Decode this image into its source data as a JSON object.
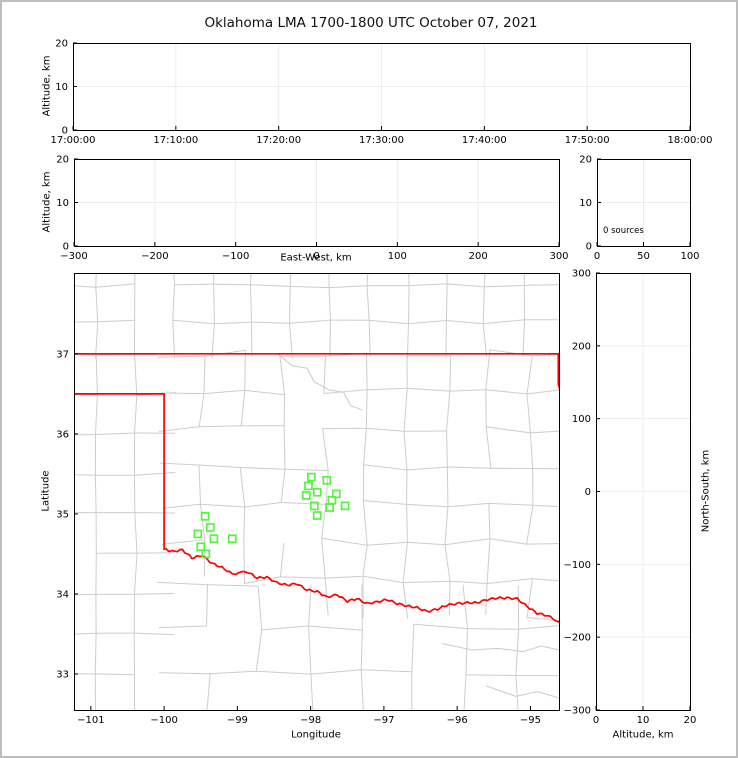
{
  "title": "Oklahoma LMA 1700-1800 UTC October 07, 2021",
  "colors": {
    "state_border": "#ff0000",
    "county_line": "#cdcdcd",
    "station_marker": "#55f43e",
    "gridline": "#ececec",
    "axis": "#000000"
  },
  "panels": {
    "time_height": {
      "ylabel": "Altitude, km",
      "yticks": [
        0,
        10,
        20
      ],
      "yrange": [
        0,
        20
      ],
      "xtick_labels": [
        "17:00:00",
        "17:10:00",
        "17:20:00",
        "17:30:00",
        "17:40:00",
        "17:50:00",
        "18:00:00"
      ]
    },
    "ew_height": {
      "ylabel": "Altitude, km",
      "xlabel": "East-West, km",
      "xticks": [
        -300,
        -200,
        -100,
        0,
        100,
        200,
        300
      ],
      "xrange": [
        -300,
        300
      ],
      "yticks": [
        0,
        10,
        20
      ],
      "yrange": [
        0,
        20
      ]
    },
    "histogram": {
      "annotation": "0 sources",
      "xticks": [
        0,
        50,
        100
      ],
      "xrange": [
        0,
        100
      ],
      "yticks": [
        0,
        10,
        20
      ],
      "yrange": [
        0,
        20
      ]
    },
    "map": {
      "xlabel": "Longitude",
      "ylabel": "Latitude",
      "xticks": [
        -101,
        -100,
        -99,
        -98,
        -97,
        -96,
        -95
      ],
      "yticks": [
        33,
        34,
        35,
        36,
        37
      ],
      "lon_range": [
        -101.23,
        -94.61
      ],
      "lat_range": [
        32.55,
        38.01
      ]
    },
    "ns_height": {
      "xlabel": "Altitude, km",
      "ylabel": "North-South, km",
      "xticks": [
        0,
        10,
        20
      ],
      "xrange": [
        0,
        20
      ],
      "yticks": [
        -300,
        -200,
        -100,
        0,
        100,
        200,
        300
      ],
      "yrange": [
        -300,
        300
      ]
    }
  },
  "chart_data": {
    "type": "scatter",
    "title": "Oklahoma LMA 1700-1800 UTC October 07, 2021",
    "source_points": [],
    "source_count_label": "0 sources",
    "stations": {
      "marker": "open-square",
      "color": "#55f43e",
      "points": [
        [
          -99.44,
          34.97
        ],
        [
          -99.37,
          34.83
        ],
        [
          -99.54,
          34.75
        ],
        [
          -99.32,
          34.69
        ],
        [
          -99.07,
          34.69
        ],
        [
          -99.5,
          34.59
        ],
        [
          -99.43,
          34.5
        ],
        [
          -97.99,
          35.46
        ],
        [
          -97.78,
          35.42
        ],
        [
          -98.03,
          35.35
        ],
        [
          -97.91,
          35.27
        ],
        [
          -98.06,
          35.23
        ],
        [
          -97.65,
          35.25
        ],
        [
          -97.71,
          35.17
        ],
        [
          -97.95,
          35.1
        ],
        [
          -97.74,
          35.08
        ],
        [
          -97.53,
          35.1
        ],
        [
          -97.91,
          34.98
        ]
      ]
    },
    "state_border": {
      "color": "#ff0000",
      "north_line": [
        [
          -101.23,
          37.0
        ],
        [
          -94.61,
          37.0
        ]
      ],
      "east_line": [
        [
          -94.62,
          37.0
        ],
        [
          -94.62,
          36.62
        ],
        [
          -94.58,
          36.5
        ]
      ],
      "panhandle": [
        [
          -101.23,
          36.5
        ],
        [
          -100.0,
          36.5
        ],
        [
          -100.0,
          34.56
        ]
      ],
      "red_river": [
        [
          -100.0,
          34.56
        ],
        [
          -99.89,
          34.53
        ],
        [
          -99.75,
          34.55
        ],
        [
          -99.62,
          34.45
        ],
        [
          -99.48,
          34.48
        ],
        [
          -99.34,
          34.38
        ],
        [
          -99.21,
          34.33
        ],
        [
          -99.07,
          34.25
        ],
        [
          -98.87,
          34.28
        ],
        [
          -98.73,
          34.2
        ],
        [
          -98.6,
          34.21
        ],
        [
          -98.46,
          34.14
        ],
        [
          -98.32,
          34.11
        ],
        [
          -98.19,
          34.13
        ],
        [
          -98.05,
          34.05
        ],
        [
          -97.91,
          34.03
        ],
        [
          -97.78,
          33.96
        ],
        [
          -97.64,
          33.99
        ],
        [
          -97.5,
          33.91
        ],
        [
          -97.37,
          33.94
        ],
        [
          -97.23,
          33.88
        ],
        [
          -97.09,
          33.9
        ],
        [
          -96.96,
          33.93
        ],
        [
          -96.82,
          33.88
        ],
        [
          -96.68,
          33.85
        ],
        [
          -96.55,
          33.83
        ],
        [
          -96.41,
          33.78
        ],
        [
          -96.27,
          33.81
        ],
        [
          -96.14,
          33.86
        ],
        [
          -96.0,
          33.88
        ],
        [
          -95.86,
          33.89
        ],
        [
          -95.73,
          33.89
        ],
        [
          -95.59,
          33.93
        ],
        [
          -95.45,
          33.95
        ],
        [
          -95.32,
          33.95
        ],
        [
          -95.18,
          33.94
        ],
        [
          -95.04,
          33.84
        ],
        [
          -94.91,
          33.76
        ],
        [
          -94.77,
          33.73
        ],
        [
          -94.61,
          33.65
        ]
      ]
    }
  }
}
